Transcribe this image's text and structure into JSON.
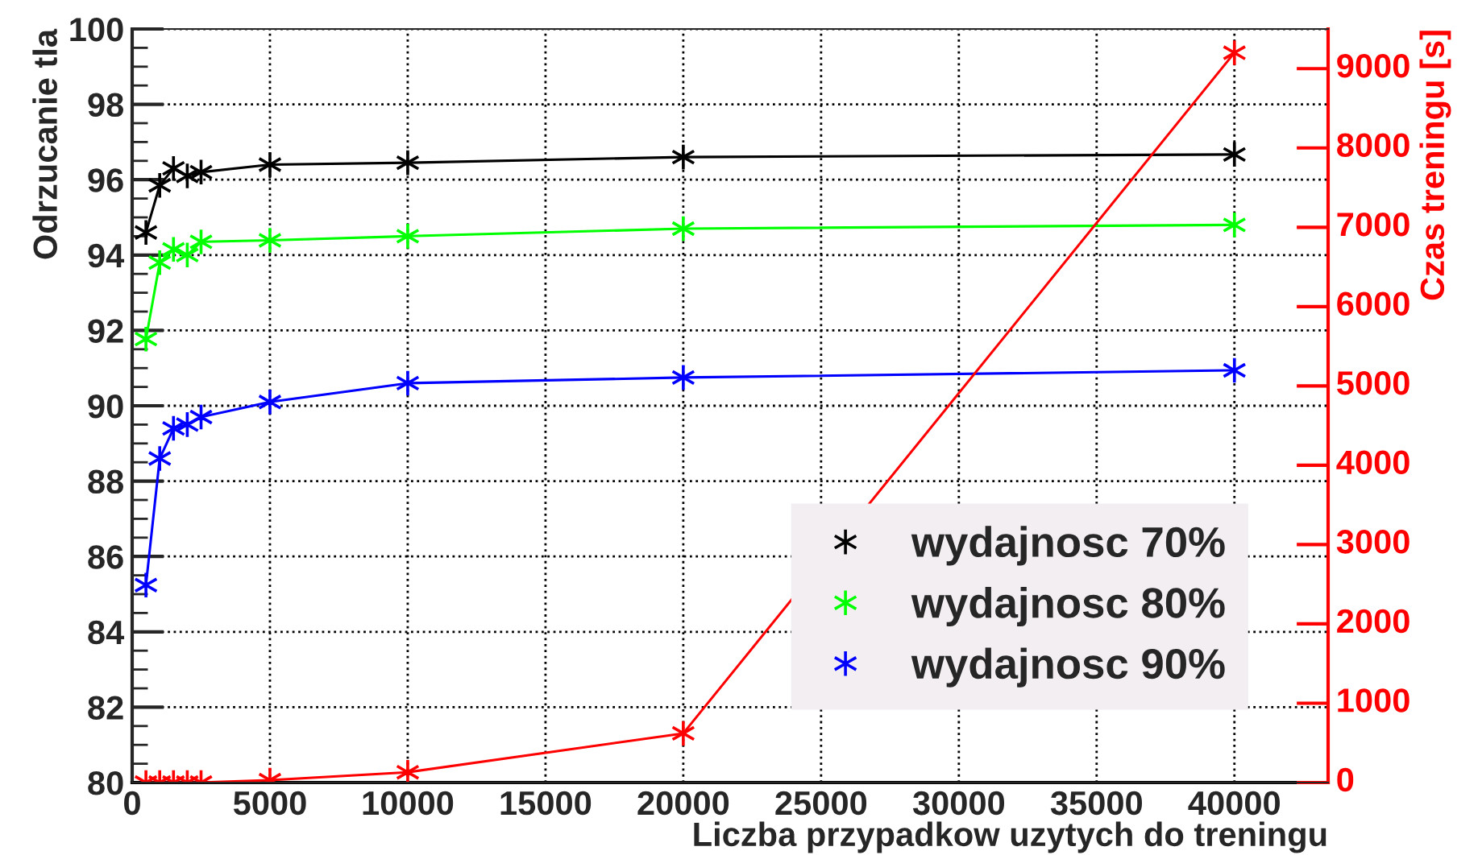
{
  "chart_data": {
    "type": "line",
    "xlabel": "Liczba przypadkow uzytych do treningu",
    "ylabel": "Odrzucanie tla",
    "y2label": "Czas treningu [s]",
    "x": [
      500,
      1000,
      1500,
      2000,
      2500,
      5000,
      10000,
      20000,
      40000
    ],
    "series": [
      {
        "name": "wydajnosc 70%",
        "color": "#000000",
        "values": [
          94.6,
          95.85,
          96.3,
          96.1,
          96.2,
          96.4,
          96.45,
          96.6,
          96.67
        ]
      },
      {
        "name": "wydajnosc 80%",
        "color": "#00ff00",
        "values": [
          91.77,
          93.8,
          94.15,
          94.0,
          94.35,
          94.39,
          94.5,
          94.7,
          94.8
        ]
      },
      {
        "name": "wydajnosc 90%",
        "color": "#0000ff",
        "values": [
          85.24,
          88.6,
          89.4,
          89.5,
          89.7,
          90.1,
          90.6,
          90.75,
          90.94
        ]
      },
      {
        "color": "#ff0000",
        "axis": "y2",
        "values": [
          0,
          0,
          0,
          0,
          0,
          30,
          130,
          620,
          9200
        ]
      }
    ],
    "xlim": [
      0,
      43400
    ],
    "xticks": [
      0,
      5000,
      10000,
      15000,
      20000,
      25000,
      30000,
      35000,
      40000
    ],
    "ylim": [
      80,
      100
    ],
    "yticks": [
      80,
      82,
      84,
      86,
      88,
      90,
      92,
      94,
      96,
      98,
      100
    ],
    "y2lim": [
      0,
      9500
    ],
    "y2ticks": [
      0,
      1000,
      2000,
      3000,
      4000,
      5000,
      6000,
      7000,
      8000,
      9000
    ],
    "grid": true,
    "legend": "bottom right",
    "marker": "cross",
    "line_style": "solid"
  }
}
